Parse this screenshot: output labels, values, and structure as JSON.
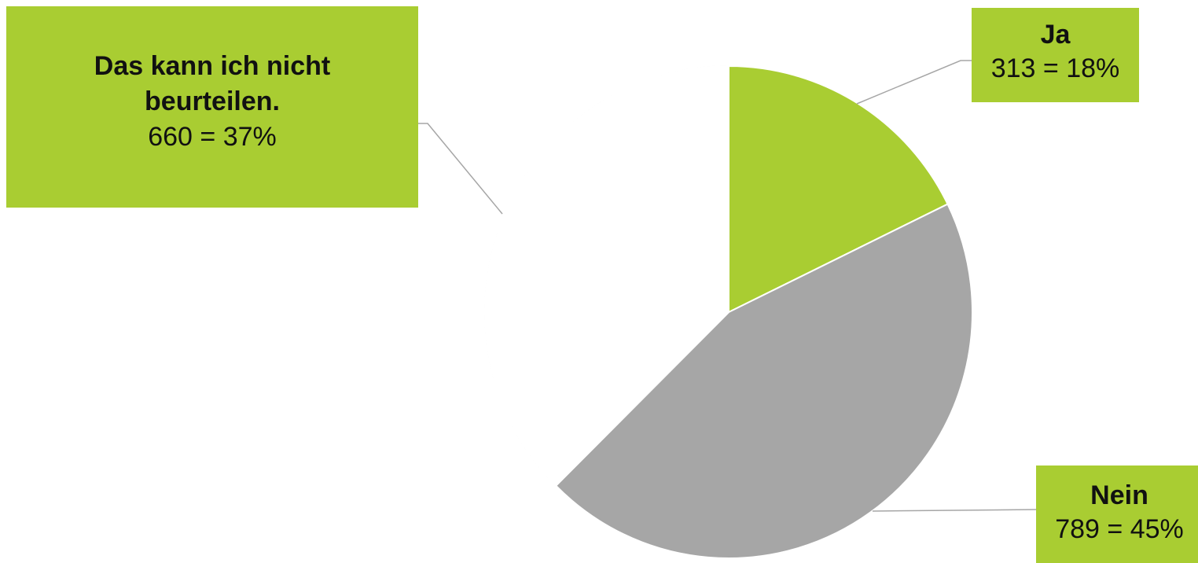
{
  "chart_data": {
    "type": "pie",
    "title": "",
    "slices": [
      {
        "label": "Ja",
        "count": 313,
        "percent": "18%",
        "value": 313,
        "color": "#a9cd32",
        "value_text": "313 = 18%"
      },
      {
        "label": "Nein",
        "count": 789,
        "percent": "45%",
        "value": 789,
        "color": "#a6a6a6",
        "value_text": "789 = 45%"
      },
      {
        "label": "Das kann ich nicht beurteilen.",
        "count": 660,
        "percent": "37%",
        "value": 660,
        "color": "#ffffff",
        "value_text": "660 = 37%"
      }
    ],
    "start_angle": "12 o'clock",
    "direction": "clockwise",
    "label_box_color": "#a9cd32",
    "leader_line_color": "#a6a6a6",
    "legend": "none"
  }
}
